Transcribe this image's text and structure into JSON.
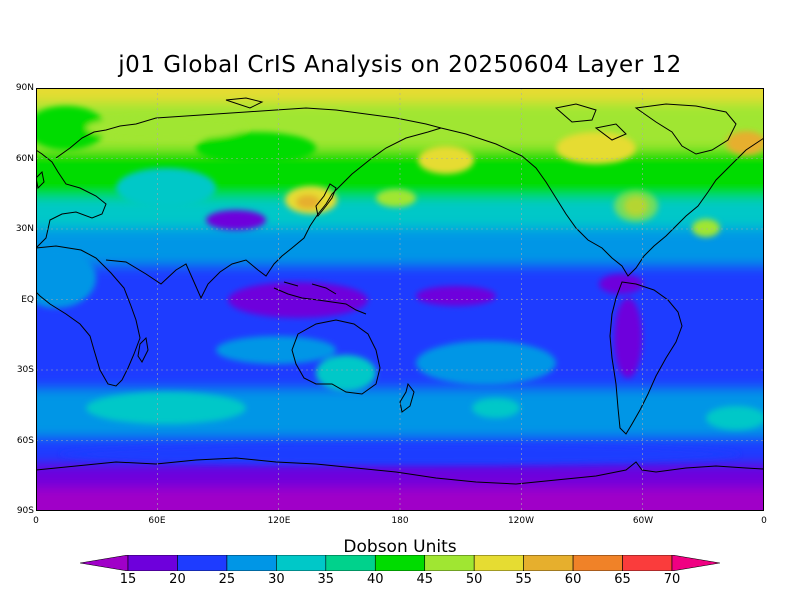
{
  "title": "j01 Global CrIS Analysis on 20250604 Layer 12",
  "lat_labels": [
    "90N",
    "60N",
    "30N",
    "EQ",
    "30S",
    "60S",
    "90S"
  ],
  "lon_labels": [
    "0",
    "60E",
    "120E",
    "180",
    "120W",
    "60W",
    "0"
  ],
  "colorbar": {
    "title": "Dobson Units",
    "levels": [
      "15",
      "20",
      "25",
      "30",
      "35",
      "40",
      "45",
      "50",
      "55",
      "60",
      "65",
      "70"
    ],
    "colors": [
      "#a000c8",
      "#6e00dc",
      "#1e3cff",
      "#0096e6",
      "#00c8c8",
      "#00d28c",
      "#00dc00",
      "#a0e632",
      "#e6dc32",
      "#e6af2d",
      "#f08228",
      "#fa3c3c",
      "#f00082"
    ]
  },
  "field_colors": {
    "c15": "#a000c8",
    "c20": "#6e00dc",
    "c25": "#1e3cff",
    "c30": "#0096e6",
    "c35": "#00c8c8",
    "c40": "#00d28c",
    "c45": "#00dc00",
    "c50": "#a0e632",
    "c55": "#e6dc32",
    "c60": "#e6af2d"
  }
}
